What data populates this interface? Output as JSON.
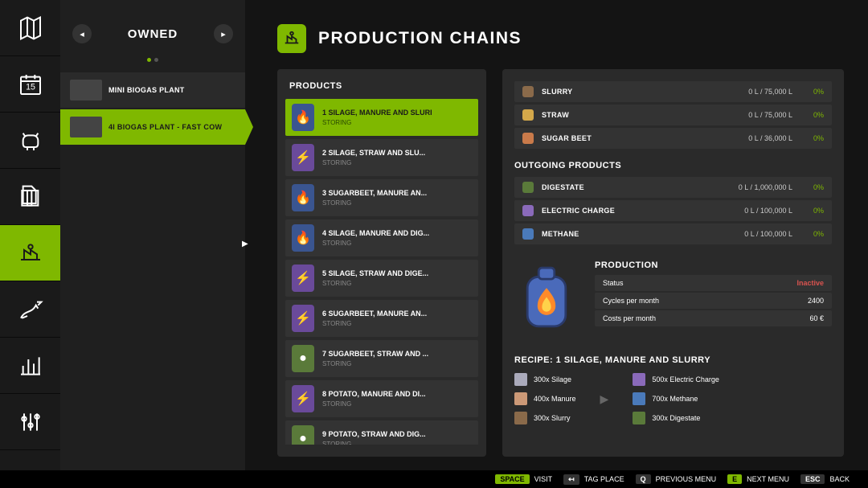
{
  "sidebar": {
    "items": [
      {
        "name": "map-icon"
      },
      {
        "name": "calendar-icon"
      },
      {
        "name": "livestock-icon"
      },
      {
        "name": "documents-icon"
      },
      {
        "name": "production-icon",
        "active": true
      },
      {
        "name": "finance-icon"
      },
      {
        "name": "stats-icon"
      },
      {
        "name": "settings-icon"
      }
    ]
  },
  "owned": {
    "title": "OWNED",
    "plants": [
      {
        "label": "MINI BIOGAS PLANT",
        "active": false
      },
      {
        "label": "4I BIOGAS PLANT - FAST COW",
        "active": true
      }
    ]
  },
  "page": {
    "title": "PRODUCTION CHAINS"
  },
  "products": {
    "title": "PRODUCTS",
    "items": [
      {
        "name": "1 SILAGE, MANURE AND SLURI",
        "status": "STORING",
        "icon": "🔥",
        "bg": "#3a5590",
        "active": true
      },
      {
        "name": "2 SILAGE, STRAW AND SLU...",
        "status": "STORING",
        "icon": "⚡",
        "bg": "#6a4a9a"
      },
      {
        "name": "3 SUGARBEET, MANURE AN...",
        "status": "STORING",
        "icon": "🔥",
        "bg": "#3a5590"
      },
      {
        "name": "4 SILAGE, MANURE AND DIG...",
        "status": "STORING",
        "icon": "🔥",
        "bg": "#3a5590"
      },
      {
        "name": "5 SILAGE, STRAW AND DIGE...",
        "status": "STORING",
        "icon": "⚡",
        "bg": "#6a4a9a"
      },
      {
        "name": "6 SUGARBEET, MANURE AN...",
        "status": "STORING",
        "icon": "⚡",
        "bg": "#6a4a9a"
      },
      {
        "name": "7 SUGARBEET, STRAW AND ...",
        "status": "STORING",
        "icon": "●",
        "bg": "#5a7a3a"
      },
      {
        "name": "8 POTATO, MANURE AND DI...",
        "status": "STORING",
        "icon": "⚡",
        "bg": "#6a4a9a"
      },
      {
        "name": "9 POTATO, STRAW AND DIG...",
        "status": "STORING",
        "icon": "●",
        "bg": "#5a7a3a"
      }
    ]
  },
  "inputs": [
    {
      "name": "SLURRY",
      "val": "0 L / 75,000 L",
      "pct": "0%",
      "color": "#8a6a4a"
    },
    {
      "name": "STRAW",
      "val": "0 L / 75,000 L",
      "pct": "0%",
      "color": "#d4a84a"
    },
    {
      "name": "SUGAR BEET",
      "val": "0 L / 36,000 L",
      "pct": "0%",
      "color": "#c97a4a"
    }
  ],
  "outgoing": {
    "title": "OUTGOING PRODUCTS",
    "items": [
      {
        "name": "DIGESTATE",
        "val": "0 L / 1,000,000 L",
        "pct": "0%",
        "color": "#5a7a3a"
      },
      {
        "name": "ELECTRIC CHARGE",
        "val": "0 L / 100,000 L",
        "pct": "0%",
        "color": "#8a6aba"
      },
      {
        "name": "METHANE",
        "val": "0 L / 100,000 L",
        "pct": "0%",
        "color": "#4a7aba"
      }
    ]
  },
  "production": {
    "title": "PRODUCTION",
    "stats": [
      {
        "label": "Status",
        "value": "Inactive",
        "inactive": true
      },
      {
        "label": "Cycles per month",
        "value": "2400"
      },
      {
        "label": "Costs per month",
        "value": "60 €"
      }
    ]
  },
  "recipe": {
    "title": "RECIPE: 1 SILAGE, MANURE AND SLURRY",
    "inputs": [
      {
        "qty": "300x",
        "name": "Silage",
        "color": "#aab"
      },
      {
        "qty": "400x",
        "name": "Manure",
        "color": "#c97"
      },
      {
        "qty": "300x",
        "name": "Slurry",
        "color": "#8a6a4a"
      }
    ],
    "outputs": [
      {
        "qty": "500x",
        "name": "Electric Charge",
        "color": "#8a6aba"
      },
      {
        "qty": "700x",
        "name": "Methane",
        "color": "#4a7aba"
      },
      {
        "qty": "300x",
        "name": "Digestate",
        "color": "#5a7a3a"
      }
    ]
  },
  "bottombar": [
    {
      "key": "SPACE",
      "label": "VISIT",
      "keyClass": "key"
    },
    {
      "key": "↤",
      "label": "TAG PLACE",
      "keyClass": "key dark"
    },
    {
      "key": "Q",
      "label": "PREVIOUS MENU",
      "keyClass": "key dark"
    },
    {
      "key": "E",
      "label": "NEXT MENU",
      "keyClass": "key"
    },
    {
      "key": "ESC",
      "label": "BACK",
      "keyClass": "key dark"
    }
  ],
  "colors": {
    "accent": "#7fb800",
    "panelBg": "#2a2a2a",
    "rowBg": "#333"
  }
}
